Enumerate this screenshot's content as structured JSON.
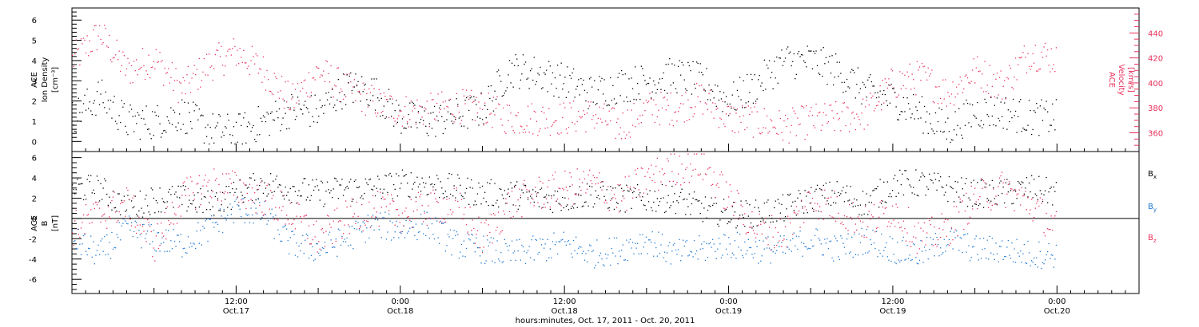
{
  "colors": {
    "black": "#000000",
    "density": "#000000",
    "velocity": "#e8325c",
    "bx": "#000000",
    "by": "#1e78d2",
    "bz": "#e8325c"
  },
  "chart_data": [
    {
      "type": "scatter",
      "panel": "top",
      "left_label": [
        "ACE",
        "Ion Density",
        "[cm⁻³]"
      ],
      "right_label": [
        "ACE",
        "Velocity",
        "[km/s]"
      ],
      "left_axis": {
        "ylim": [
          -0.5,
          6.6
        ],
        "ticks": [
          0,
          1,
          2,
          3,
          4,
          5,
          6
        ]
      },
      "right_axis": {
        "ylim": [
          345,
          460
        ],
        "ticks": [
          360,
          380,
          400,
          420,
          440
        ]
      },
      "x_hours_range": [
        0,
        78
      ],
      "series": [
        {
          "name": "Ion Density",
          "axis": "left",
          "x": [
            0,
            2,
            4,
            6,
            8,
            10,
            12,
            14,
            16,
            18,
            20,
            22,
            24,
            26,
            28,
            30,
            32,
            34,
            36,
            38,
            40,
            42,
            44,
            46,
            48,
            50,
            52,
            54,
            56,
            58,
            60,
            62,
            64,
            66,
            68,
            70,
            72
          ],
          "y": [
            1.2,
            2.3,
            1.0,
            1.0,
            1.4,
            0.6,
            0.5,
            1.0,
            1.6,
            1.5,
            2.7,
            2.5,
            1.2,
            1.0,
            1.3,
            1.6,
            3.6,
            3.4,
            3.0,
            2.4,
            2.8,
            3.0,
            3.3,
            3.0,
            2.0,
            2.8,
            4.0,
            4.0,
            3.5,
            2.5,
            2.1,
            1.4,
            0.6,
            1.5,
            1.5,
            1.2,
            1.2
          ]
        },
        {
          "name": "Velocity",
          "axis": "right",
          "x": [
            0,
            2,
            4,
            6,
            8,
            10,
            12,
            14,
            16,
            18,
            20,
            22,
            24,
            26,
            28,
            30,
            32,
            34,
            36,
            38,
            40,
            42,
            44,
            46,
            48,
            50,
            52,
            54,
            56,
            58,
            60,
            62,
            64,
            66,
            68,
            70,
            72
          ],
          "y": [
            418,
            440,
            410,
            420,
            395,
            415,
            425,
            410,
            385,
            410,
            395,
            385,
            378,
            378,
            382,
            380,
            372,
            372,
            372,
            375,
            365,
            380,
            380,
            388,
            372,
            370,
            365,
            370,
            372,
            376,
            400,
            405,
            392,
            410,
            398,
            425,
            420
          ]
        }
      ]
    },
    {
      "type": "scatter",
      "panel": "bottom",
      "left_label": [
        "ACE",
        "B",
        "[nT]"
      ],
      "ylim": [
        -7.4,
        6.6
      ],
      "ticks": [
        -6,
        -4,
        -2,
        0,
        2,
        4,
        6
      ],
      "legend_position": "right",
      "legend": [
        {
          "main": "B",
          "sub": "x"
        },
        {
          "main": "B",
          "sub": "y"
        },
        {
          "main": "B",
          "sub": "z"
        }
      ],
      "x_hours_range": [
        0,
        78
      ],
      "series": [
        {
          "name": "Bx",
          "x": [
            0,
            2,
            4,
            6,
            8,
            10,
            12,
            14,
            16,
            18,
            20,
            22,
            24,
            26,
            28,
            30,
            32,
            34,
            36,
            38,
            40,
            42,
            44,
            46,
            48,
            50,
            52,
            54,
            56,
            58,
            60,
            62,
            64,
            66,
            68,
            70,
            72
          ],
          "y": [
            3.0,
            3.0,
            1.0,
            2.0,
            2.0,
            1.5,
            2.5,
            3.5,
            3.0,
            2.5,
            3.0,
            3.0,
            3.5,
            3.5,
            3.0,
            2.5,
            2.5,
            2.0,
            2.0,
            2.5,
            2.0,
            2.0,
            2.0,
            1.0,
            0.5,
            0.5,
            1.0,
            2.0,
            2.5,
            1.5,
            3.5,
            3.5,
            3.0,
            2.5,
            2.5,
            3.0,
            2.5
          ]
        },
        {
          "name": "By",
          "x": [
            0,
            2,
            4,
            6,
            8,
            10,
            12,
            14,
            16,
            18,
            20,
            22,
            24,
            26,
            28,
            30,
            32,
            34,
            36,
            38,
            40,
            42,
            44,
            46,
            48,
            50,
            52,
            54,
            56,
            58,
            60,
            62,
            64,
            66,
            68,
            70,
            72
          ],
          "y": [
            -2.0,
            -3.5,
            -1.0,
            -2.0,
            -2.5,
            -1.0,
            1.0,
            0.5,
            -2.5,
            -3.0,
            -2.0,
            -0.5,
            -1.0,
            -0.5,
            -2.5,
            -3.0,
            -3.5,
            -3.0,
            -2.5,
            -3.5,
            -3.0,
            -2.0,
            -3.5,
            -3.0,
            -2.5,
            -3.0,
            -3.0,
            -2.0,
            -3.0,
            -2.0,
            -3.0,
            -3.5,
            -2.0,
            -3.0,
            -3.0,
            -3.5,
            -3.5
          ]
        },
        {
          "name": "Bz",
          "x": [
            0,
            2,
            4,
            6,
            8,
            10,
            12,
            14,
            16,
            18,
            20,
            22,
            24,
            26,
            28,
            30,
            32,
            34,
            36,
            38,
            40,
            42,
            44,
            46,
            48,
            50,
            52,
            54,
            56,
            58,
            60,
            62,
            64,
            66,
            68,
            70,
            72
          ],
          "y": [
            -1.0,
            0.5,
            1.5,
            -2.5,
            2.0,
            3.5,
            3.0,
            2.0,
            0.5,
            -2.0,
            0.0,
            1.0,
            0.5,
            1.0,
            1.5,
            -2.0,
            1.5,
            2.5,
            3.0,
            3.5,
            2.0,
            4.0,
            5.0,
            5.5,
            2.0,
            -1.0,
            -1.5,
            2.0,
            1.0,
            -0.5,
            1.0,
            -2.0,
            -1.0,
            2.0,
            3.0,
            1.5,
            -1.0
          ]
        }
      ],
      "x_tick_labels": [
        {
          "time": "12:00",
          "date": "Oct.17"
        },
        {
          "time": "0:00",
          "date": "Oct.18"
        },
        {
          "time": "12:00",
          "date": "Oct.18"
        },
        {
          "time": "0:00",
          "date": "Oct.19"
        },
        {
          "time": "12:00",
          "date": "Oct.19"
        },
        {
          "time": "0:00",
          "date": "Oct.20"
        }
      ],
      "xlabel": "hours:minutes, Oct. 17, 2011 - Oct. 20, 2011"
    }
  ]
}
